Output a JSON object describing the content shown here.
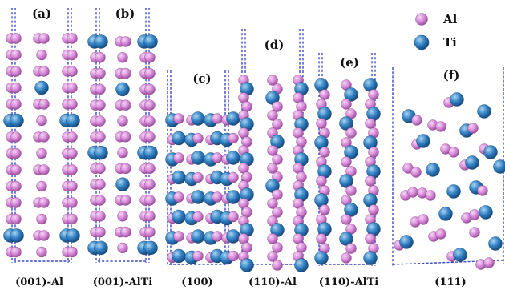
{
  "legend": [
    {
      "key": "al",
      "label": "Al",
      "color": "#d78ad8"
    },
    {
      "key": "ti",
      "label": "Ti",
      "color": "#2f7fc1"
    }
  ],
  "panels": [
    {
      "id": "a",
      "letter": "(a)",
      "caption": "(001)-Al"
    },
    {
      "id": "b",
      "letter": "(b)",
      "caption": "(001)-AlTi"
    },
    {
      "id": "c",
      "letter": "(c)",
      "caption": "(100)"
    },
    {
      "id": "d",
      "letter": "(d)",
      "caption": "(110)-Al"
    },
    {
      "id": "e",
      "letter": "(e)",
      "caption": "(110)-AlTi"
    },
    {
      "id": "f",
      "letter": "(f)",
      "caption": "(111)"
    }
  ]
}
